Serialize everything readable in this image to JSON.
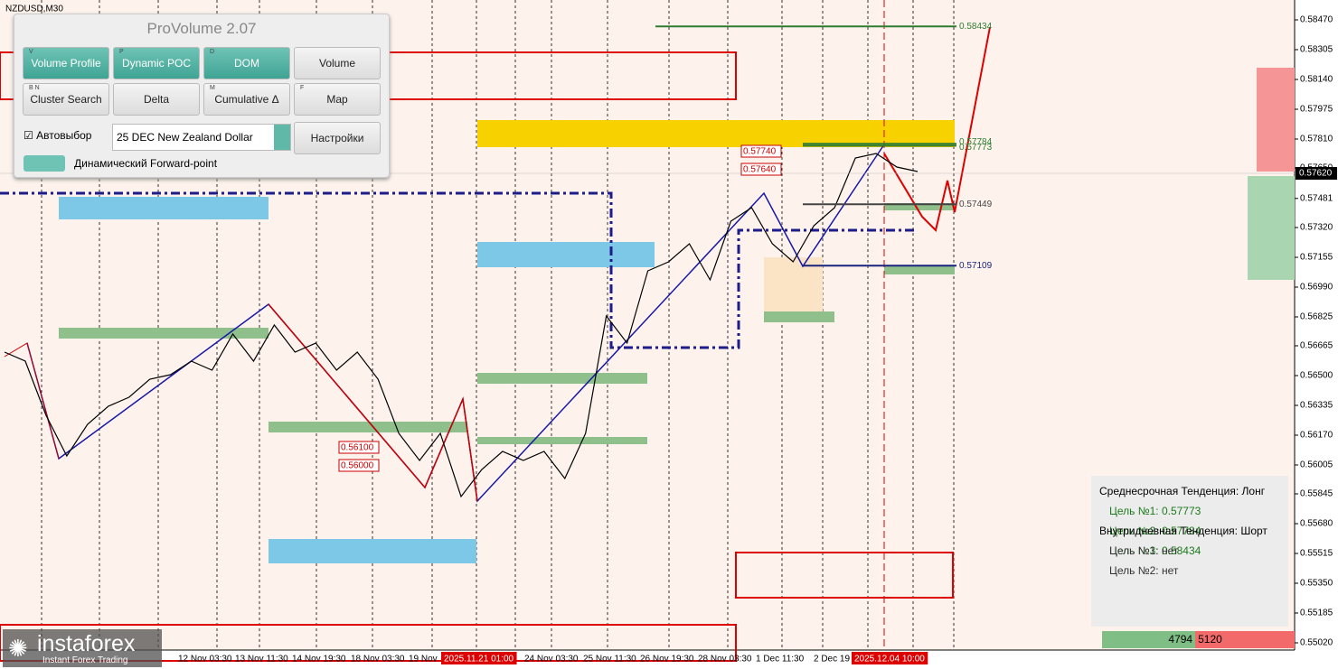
{
  "symbol": "NZDUSD,M30",
  "panel": {
    "title": "ProVolume 2.07",
    "buttons": [
      {
        "label": "Volume Profile",
        "key": "V"
      },
      {
        "label": "Dynamic POC",
        "key": "P"
      },
      {
        "label": "DOM",
        "key": "D"
      },
      {
        "label": "Volume"
      },
      {
        "label": "Cluster Search",
        "key": "B N"
      },
      {
        "label": "Delta"
      },
      {
        "label": "Cumulative Δ",
        "key": "M"
      },
      {
        "label": "Map",
        "key": "F"
      }
    ],
    "auto_select": "Автовыбор",
    "instrument": "25 DEC New Zealand Dollar",
    "settings": "Настройки",
    "forward_point": "Динамический Forward-point"
  },
  "chart": {
    "ylim": [
      0.55,
      0.5858
    ],
    "yticks": [
      {
        "value": 0.5847,
        "label": "0.58470"
      },
      0.58305,
      {
        "value": 0.5814,
        "label": "0.58140"
      },
      0.57975,
      {
        "value": 0.5781,
        "label": "0.57810"
      },
      {
        "value": 0.5765,
        "label": "0.57650"
      },
      0.57481,
      {
        "value": 0.5732,
        "label": "0.57320"
      },
      0.57155,
      {
        "value": 0.5699,
        "label": "0.56990"
      },
      0.56825,
      0.56665,
      {
        "value": 0.565,
        "label": "0.56500"
      },
      0.56335,
      {
        "value": 0.5617,
        "label": "0.56170"
      },
      0.56005,
      0.55845,
      {
        "value": 0.5568,
        "label": "0.55680"
      },
      0.55515,
      {
        "value": 0.5535,
        "label": "0.55350"
      },
      0.55185,
      {
        "value": 0.5502,
        "label": "0.55020"
      }
    ],
    "current_price": {
      "value": 0.5762,
      "label": "0.57620"
    },
    "time_labels": [
      "12 Nov 03:30",
      "13 Nov 11:30",
      "14 Nov 19:30",
      "18 Nov 03:30",
      "19 Nov",
      "2025.11.21 01:00",
      "24 Nov 03:30",
      "25 Nov 11:30",
      "26 Nov 19:30",
      "28 Nov 03:30",
      "1 Dec 11:30",
      "2 Dec 19",
      "2025.12.04 10:00"
    ],
    "levels": [
      0.58434,
      0.57773,
      0.57784,
      0.57449,
      0.57109
    ],
    "red_levels": [
      {
        "value": 0.5774,
        "label": "0.57740"
      },
      {
        "value": 0.5764,
        "label": "0.57640"
      },
      {
        "value": 0.561,
        "label": "0.56100"
      },
      {
        "value": 0.56,
        "label": "0.56000"
      }
    ],
    "price_path": [
      0.5663,
      0.5658,
      0.5628,
      0.56055,
      0.5623,
      0.5633,
      0.5638,
      0.5648,
      0.56505,
      0.5658,
      0.5653,
      0.5673,
      0.5658,
      0.5678,
      0.5663,
      0.5668,
      0.5653,
      0.5663,
      0.5648,
      0.5618,
      0.5603,
      0.5618,
      0.5583,
      0.5598,
      0.5608,
      0.5603,
      0.5608,
      0.5593,
      0.5618,
      0.5683,
      0.5668,
      0.5708,
      0.5713,
      0.5723,
      0.5703,
      0.57355,
      0.5743,
      0.5723,
      0.5713,
      0.5733,
      0.5743,
      0.57705,
      0.5773,
      0.57655,
      0.5763
    ]
  },
  "info": {
    "mid_trend": "Среднесрочная Тенденция: Лонг",
    "mid_targets": [
      "Цель №1: 0.57773",
      "Цель №2: 0.57784",
      "Цель №3: 0.58434"
    ],
    "intraday_trend": "Внутридневная Тенденция: Шорт",
    "intraday_targets": [
      "Цель №1: нет",
      "Цель №2: нет"
    ]
  },
  "volume_bar": {
    "buy": 4794,
    "sell": 5120
  },
  "logo": {
    "name": "instaforex",
    "tagline": "Instant Forex Trading"
  }
}
